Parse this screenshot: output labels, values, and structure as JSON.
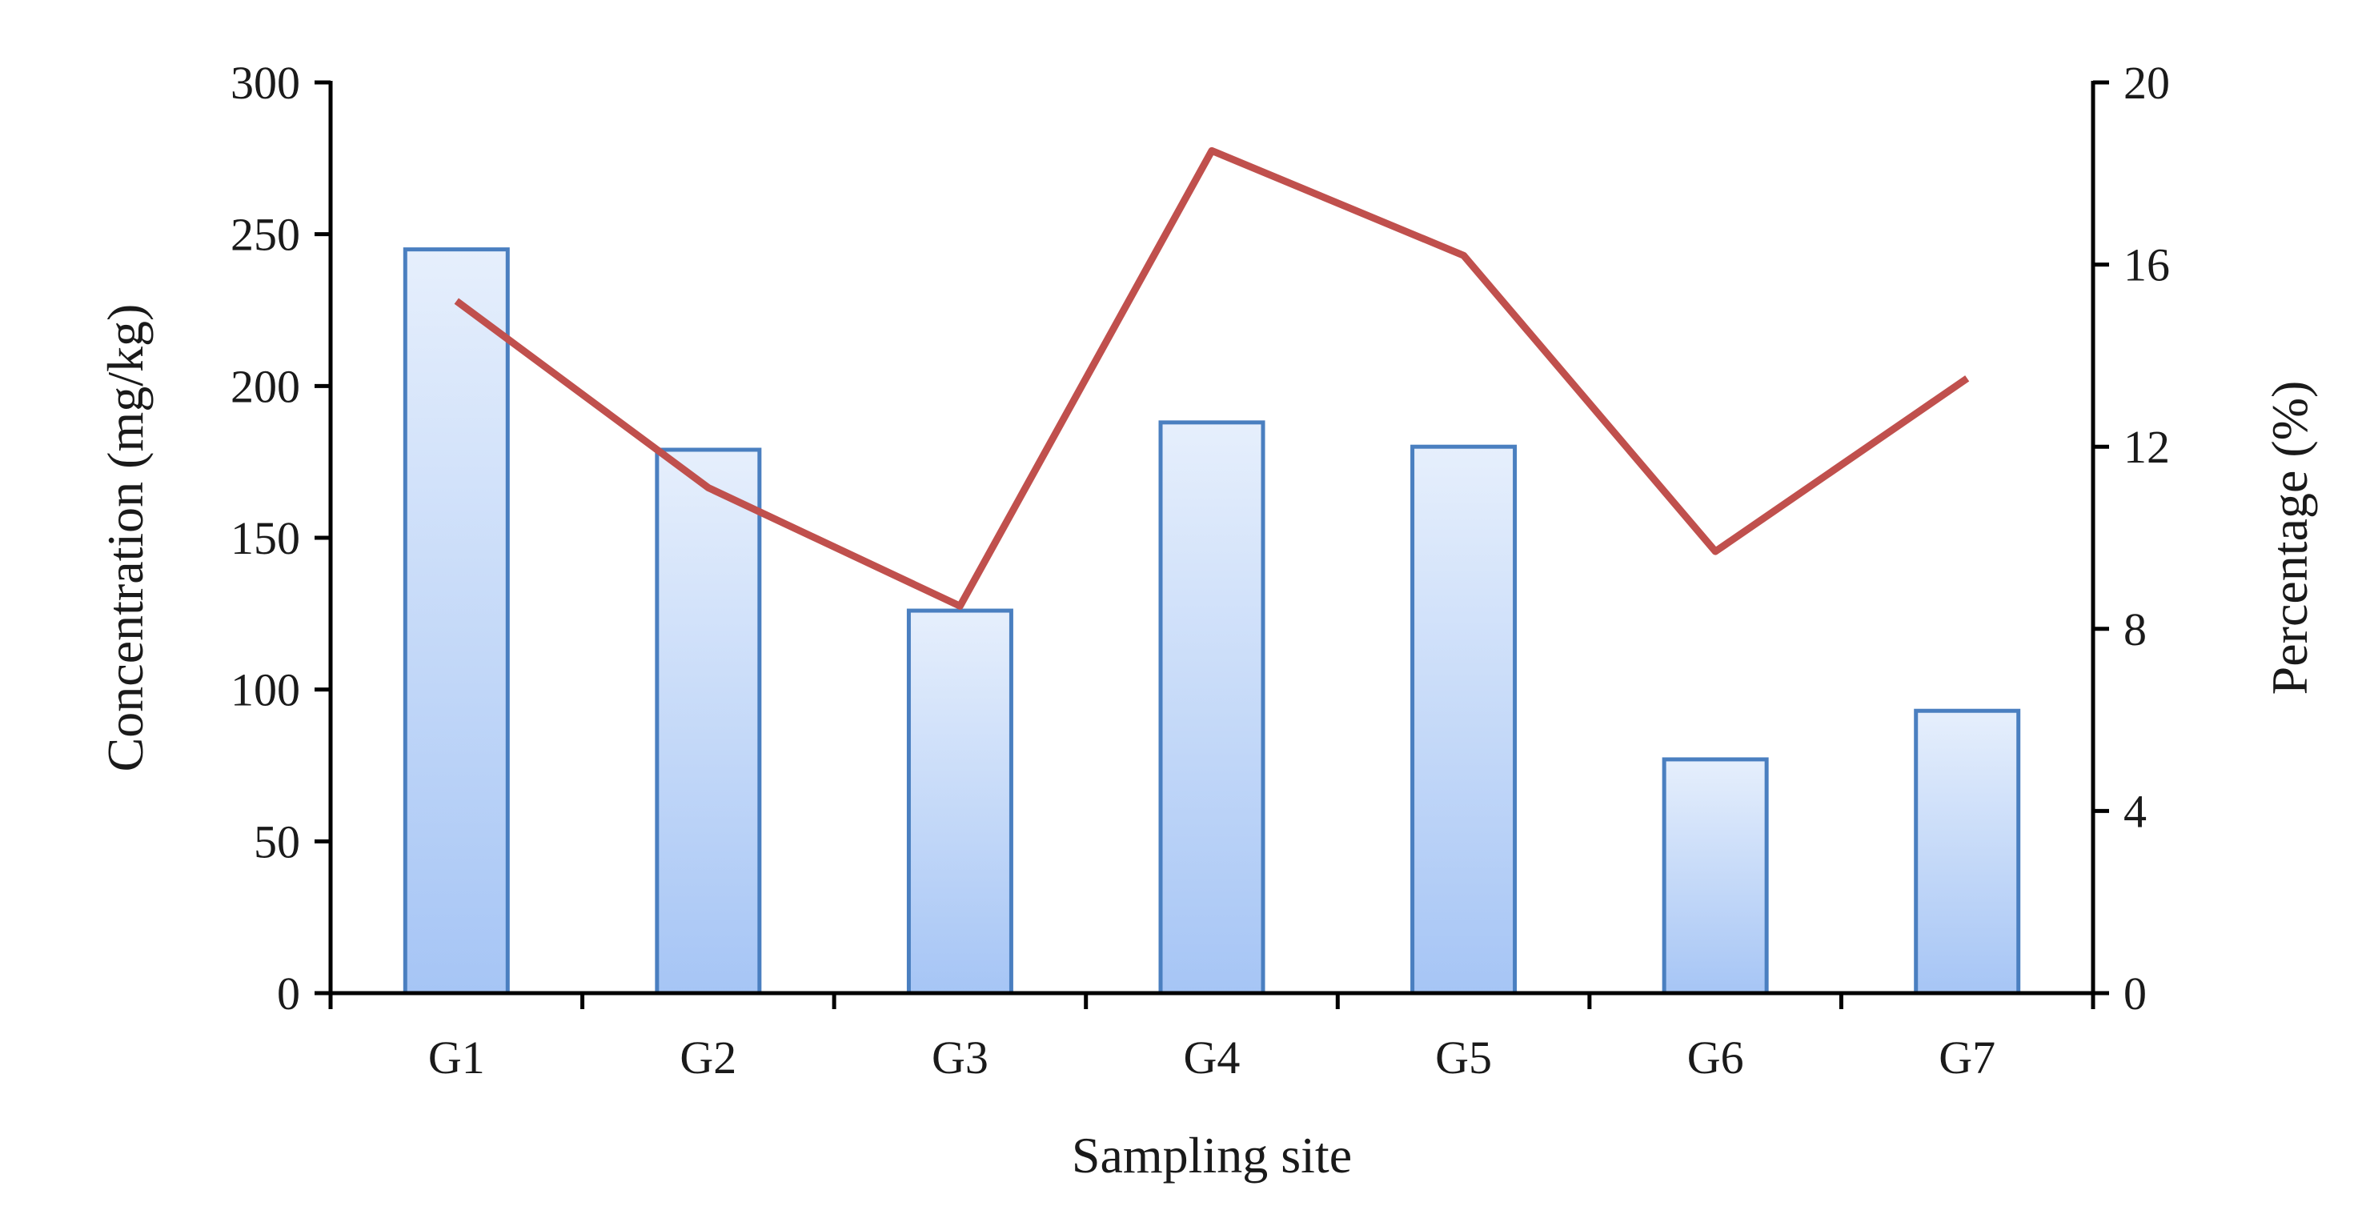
{
  "chart_data": {
    "type": "bar",
    "categories": [
      "G1",
      "G2",
      "G3",
      "G4",
      "G5",
      "G6",
      "G7"
    ],
    "xlabel": "Sampling site",
    "ylabel": "Concentration (mg/kg)",
    "y2label": "Percentage (%)",
    "ylim": [
      0,
      300
    ],
    "yticks": [
      "0",
      "50",
      "100",
      "150",
      "200",
      "250",
      "300"
    ],
    "y2lim": [
      0,
      20
    ],
    "y2ticks": [
      "0",
      "4",
      "8",
      "12",
      "16",
      "20"
    ],
    "grid": false,
    "series": [
      {
        "type": "bar",
        "axis": "left",
        "values": [
          245,
          179,
          126,
          188,
          180,
          77,
          93
        ],
        "color": "#a9c8f7",
        "edge_color": "#4a7fc0"
      },
      {
        "type": "line",
        "axis": "right",
        "values": [
          15.2,
          11.1,
          8.5,
          18.5,
          16.2,
          9.7,
          13.5
        ],
        "color": "#c0504d"
      }
    ]
  }
}
